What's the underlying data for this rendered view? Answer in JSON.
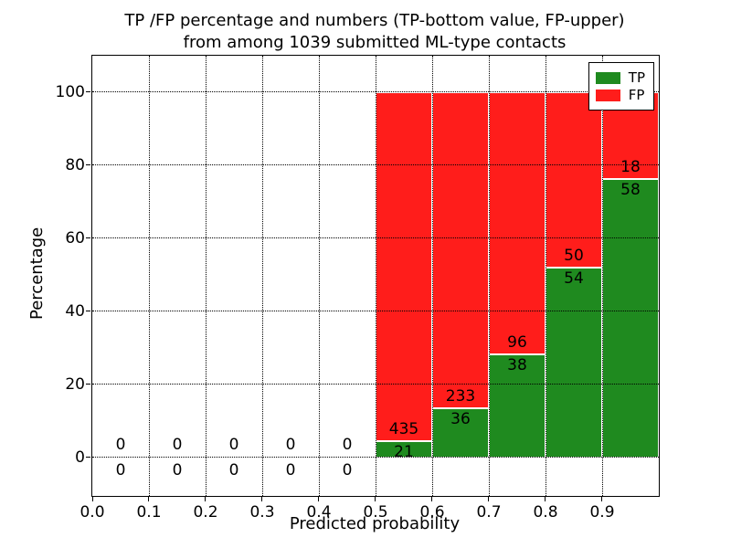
{
  "figure": {
    "title_line1": "TP /FP percentage and numbers (TP-bottom value, FP-upper)",
    "title_line2": "from among 1039 submitted ML-type contacts"
  },
  "chart_data": {
    "type": "bar",
    "stacked": true,
    "title": "TP /FP percentage and numbers (TP-bottom value, FP-upper) from among 1039 submitted ML-type contacts",
    "xlabel": "Predicted probability",
    "ylabel": "Percentage",
    "total_contacts": 1039,
    "xlim": [
      0.0,
      1.0
    ],
    "ylim": [
      -10.5,
      110
    ],
    "grid": true,
    "x_ticks": [
      {
        "value": 0.0,
        "label": "0.0"
      },
      {
        "value": 0.1,
        "label": "0.1"
      },
      {
        "value": 0.2,
        "label": "0.2"
      },
      {
        "value": 0.3,
        "label": "0.3"
      },
      {
        "value": 0.4,
        "label": "0.4"
      },
      {
        "value": 0.5,
        "label": "0.5"
      },
      {
        "value": 0.6,
        "label": "0.6"
      },
      {
        "value": 0.7,
        "label": "0.7"
      },
      {
        "value": 0.8,
        "label": "0.8"
      },
      {
        "value": 0.9,
        "label": "0.9"
      }
    ],
    "y_ticks": [
      {
        "value": 0,
        "label": "0"
      },
      {
        "value": 20,
        "label": "20"
      },
      {
        "value": 40,
        "label": "40"
      },
      {
        "value": 60,
        "label": "60"
      },
      {
        "value": 80,
        "label": "80"
      },
      {
        "value": 100,
        "label": "100"
      }
    ],
    "bins": [
      {
        "x_start": 0.0,
        "x_end": 0.1,
        "tp": 0,
        "fp": 0,
        "tp_pct": 0,
        "fp_pct": 0
      },
      {
        "x_start": 0.1,
        "x_end": 0.2,
        "tp": 0,
        "fp": 0,
        "tp_pct": 0,
        "fp_pct": 0
      },
      {
        "x_start": 0.2,
        "x_end": 0.3,
        "tp": 0,
        "fp": 0,
        "tp_pct": 0,
        "fp_pct": 0
      },
      {
        "x_start": 0.3,
        "x_end": 0.4,
        "tp": 0,
        "fp": 0,
        "tp_pct": 0,
        "fp_pct": 0
      },
      {
        "x_start": 0.4,
        "x_end": 0.5,
        "tp": 0,
        "fp": 0,
        "tp_pct": 0,
        "fp_pct": 0
      },
      {
        "x_start": 0.5,
        "x_end": 0.6,
        "tp": 21,
        "fp": 435,
        "tp_pct": 4.61,
        "fp_pct": 95.39
      },
      {
        "x_start": 0.6,
        "x_end": 0.7,
        "tp": 36,
        "fp": 233,
        "tp_pct": 13.38,
        "fp_pct": 86.62
      },
      {
        "x_start": 0.7,
        "x_end": 0.8,
        "tp": 38,
        "fp": 96,
        "tp_pct": 28.36,
        "fp_pct": 71.64
      },
      {
        "x_start": 0.8,
        "x_end": 0.9,
        "tp": 54,
        "fp": 50,
        "tp_pct": 51.92,
        "fp_pct": 48.08
      },
      {
        "x_start": 0.9,
        "x_end": 1.0,
        "tp": 58,
        "fp": 18,
        "tp_pct": 76.32,
        "fp_pct": 23.68
      }
    ],
    "colors": {
      "tp": "#1f8a1f",
      "fp": "#ff1d1b"
    },
    "legend": {
      "position": "upper-right",
      "entries": [
        {
          "label": "TP",
          "color": "#1f8a1f"
        },
        {
          "label": "FP",
          "color": "#ff1d1b"
        }
      ]
    }
  }
}
